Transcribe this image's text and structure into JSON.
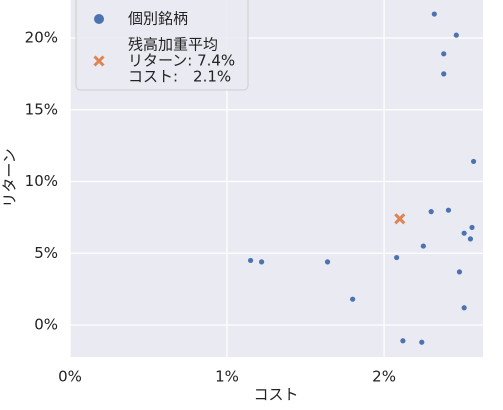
{
  "chart_data": {
    "type": "scatter",
    "xlabel": "コスト",
    "ylabel": "リターン",
    "xlim": [
      0,
      2.63
    ],
    "ylim": [
      -2.23,
      22.65
    ],
    "xticks": [
      {
        "value": 0,
        "label": "0%"
      },
      {
        "value": 1,
        "label": "1%"
      },
      {
        "value": 2,
        "label": "2%"
      }
    ],
    "yticks": [
      {
        "value": 0,
        "label": "0%"
      },
      {
        "value": 5,
        "label": "5%"
      },
      {
        "value": 10,
        "label": "10%"
      },
      {
        "value": 15,
        "label": "15%"
      },
      {
        "value": 20,
        "label": "20%"
      }
    ],
    "grid": true,
    "legend": "upper left",
    "series": [
      {
        "name": "個別銘柄",
        "color": "#4c72b0",
        "marker": "o",
        "x": [
          2.32,
          2.46,
          2.38,
          2.38,
          2.57,
          2.3,
          2.41,
          2.51,
          2.56,
          2.55,
          2.25,
          2.08,
          2.48,
          2.51,
          2.12,
          2.24,
          1.15,
          1.22,
          1.64,
          1.8
        ],
        "values": [
          21.67,
          20.2,
          18.9,
          17.5,
          11.4,
          7.9,
          8.0,
          6.4,
          6.8,
          6.0,
          5.5,
          4.7,
          3.7,
          1.2,
          -1.1,
          -1.2,
          4.5,
          4.4,
          4.4,
          1.8
        ]
      },
      {
        "name": "残高加重平均",
        "color": "#dd8452",
        "marker": "x",
        "x": [
          2.1
        ],
        "values": [
          7.4
        ],
        "legend_notes": [
          "リターン: 7.4%",
          "コスト:　2.1%"
        ]
      }
    ]
  }
}
